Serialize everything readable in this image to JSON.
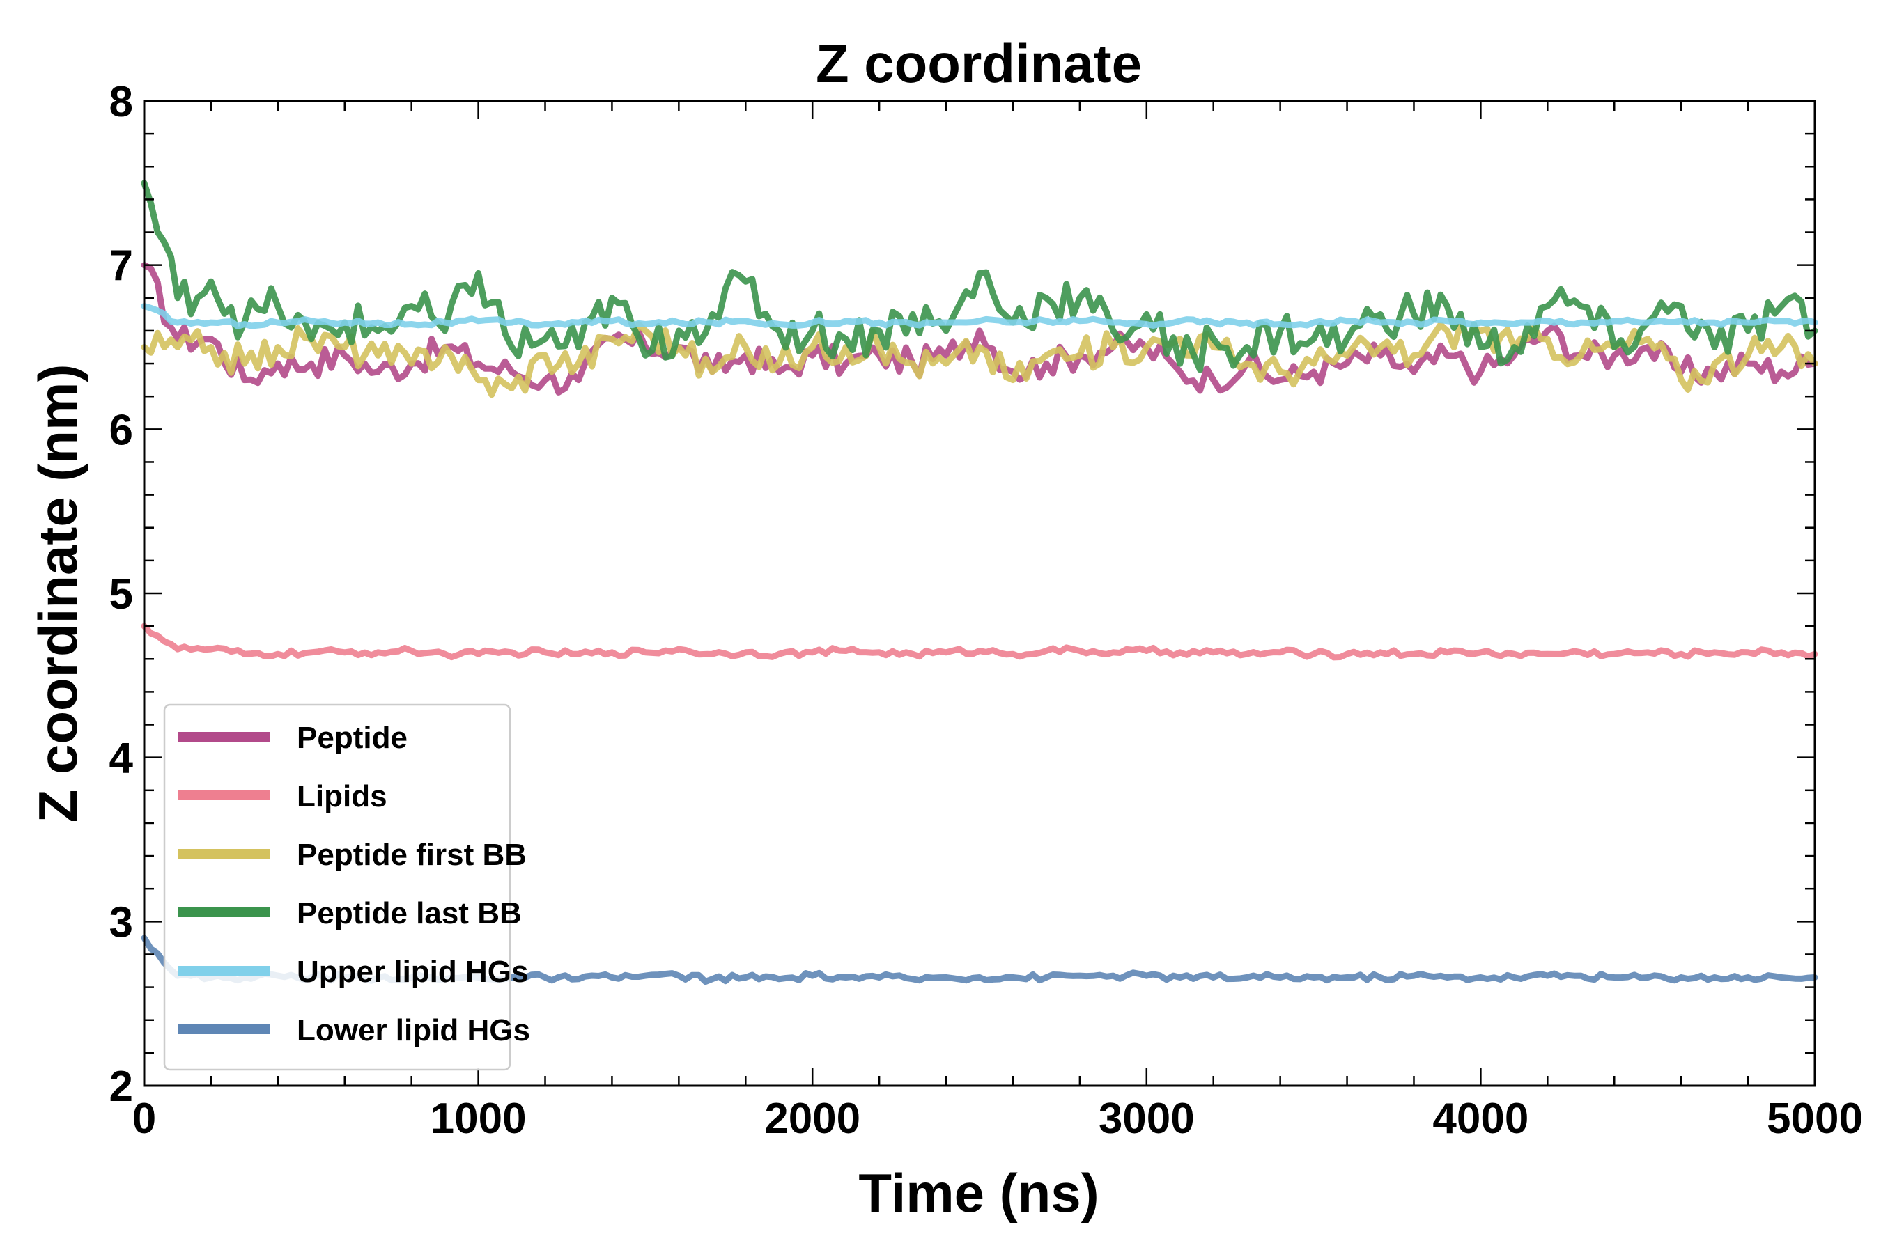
{
  "chart_data": {
    "type": "line",
    "title": "Z coordinate",
    "xlabel": "Time (ns)",
    "ylabel": "Z coordinate (nm)",
    "xlim": [
      0,
      5000
    ],
    "ylim": [
      2,
      8
    ],
    "xticks": [
      0,
      1000,
      2000,
      3000,
      4000,
      5000
    ],
    "yticks": [
      2,
      3,
      4,
      5,
      6,
      7,
      8
    ],
    "xtick_labels": [
      "0",
      "1000",
      "2000",
      "3000",
      "4000",
      "5000"
    ],
    "ytick_labels": [
      "2",
      "3",
      "4",
      "5",
      "6",
      "7",
      "8"
    ],
    "grid": false,
    "legend_position": "lower-left",
    "x": [
      0,
      100,
      200,
      300,
      400,
      500,
      600,
      700,
      800,
      900,
      1000,
      1100,
      1200,
      1300,
      1400,
      1500,
      1600,
      1700,
      1800,
      1900,
      2000,
      2100,
      2200,
      2300,
      2400,
      2500,
      2600,
      2700,
      2800,
      2900,
      3000,
      3100,
      3200,
      3300,
      3400,
      3500,
      3600,
      3700,
      3800,
      3900,
      4000,
      4100,
      4200,
      4300,
      4400,
      4500,
      4600,
      4700,
      4800,
      4900,
      5000
    ],
    "series": [
      {
        "name": "Peptide",
        "color": "#b24a8a",
        "values": [
          7.0,
          6.55,
          6.55,
          6.3,
          6.4,
          6.4,
          6.45,
          6.35,
          6.4,
          6.5,
          6.4,
          6.35,
          6.3,
          6.3,
          6.55,
          6.5,
          6.5,
          6.35,
          6.45,
          6.35,
          6.45,
          6.4,
          6.45,
          6.4,
          6.45,
          6.6,
          6.35,
          6.4,
          6.45,
          6.5,
          6.5,
          6.35,
          6.3,
          6.4,
          6.3,
          6.35,
          6.4,
          6.45,
          6.35,
          6.45,
          6.35,
          6.45,
          6.6,
          6.45,
          6.45,
          6.5,
          6.35,
          6.35,
          6.4,
          6.35,
          6.4
        ]
      },
      {
        "name": "Lipids",
        "color": "#ee7f90",
        "values": [
          4.8,
          4.66,
          4.66,
          4.63,
          4.63,
          4.64,
          4.64,
          4.64,
          4.65,
          4.63,
          4.63,
          4.64,
          4.64,
          4.63,
          4.64,
          4.64,
          4.66,
          4.63,
          4.64,
          4.63,
          4.64,
          4.65,
          4.64,
          4.63,
          4.64,
          4.65,
          4.63,
          4.65,
          4.65,
          4.64,
          4.65,
          4.64,
          4.64,
          4.63,
          4.64,
          4.63,
          4.63,
          4.64,
          4.63,
          4.64,
          4.64,
          4.63,
          4.63,
          4.64,
          4.63,
          4.64,
          4.63,
          4.64,
          4.64,
          4.64,
          4.63
        ]
      },
      {
        "name": "Peptide first BB",
        "color": "#d4c25e",
        "values": [
          6.5,
          6.5,
          6.5,
          6.4,
          6.5,
          6.55,
          6.5,
          6.45,
          6.4,
          6.5,
          6.3,
          6.25,
          6.45,
          6.4,
          6.55,
          6.6,
          6.5,
          6.35,
          6.5,
          6.4,
          6.5,
          6.5,
          6.5,
          6.4,
          6.4,
          6.5,
          6.3,
          6.45,
          6.45,
          6.5,
          6.5,
          6.55,
          6.5,
          6.4,
          6.35,
          6.4,
          6.45,
          6.5,
          6.45,
          6.6,
          6.6,
          6.5,
          6.55,
          6.45,
          6.5,
          6.55,
          6.3,
          6.4,
          6.45,
          6.5,
          6.4
        ]
      },
      {
        "name": "Peptide last BB",
        "color": "#3b944d",
        "values": [
          7.5,
          6.8,
          6.9,
          6.65,
          6.75,
          6.55,
          6.65,
          6.6,
          6.75,
          6.6,
          6.95,
          6.5,
          6.55,
          6.5,
          6.8,
          6.45,
          6.6,
          6.7,
          6.9,
          6.6,
          6.6,
          6.55,
          6.6,
          6.7,
          6.6,
          6.95,
          6.65,
          6.8,
          6.8,
          6.6,
          6.7,
          6.4,
          6.55,
          6.5,
          6.6,
          6.55,
          6.55,
          6.7,
          6.7,
          6.75,
          6.5,
          6.5,
          6.75,
          6.75,
          6.5,
          6.65,
          6.75,
          6.5,
          6.6,
          6.75,
          6.6
        ]
      },
      {
        "name": "Upper lipid HGs",
        "color": "#80d0ea",
        "values": [
          6.75,
          6.65,
          6.65,
          6.64,
          6.65,
          6.66,
          6.65,
          6.65,
          6.64,
          6.65,
          6.66,
          6.65,
          6.64,
          6.65,
          6.66,
          6.64,
          6.65,
          6.65,
          6.66,
          6.64,
          6.65,
          6.66,
          6.65,
          6.64,
          6.65,
          6.66,
          6.65,
          6.66,
          6.66,
          6.65,
          6.64,
          6.66,
          6.65,
          6.65,
          6.64,
          6.65,
          6.66,
          6.65,
          6.65,
          6.66,
          6.65,
          6.64,
          6.66,
          6.65,
          6.66,
          6.65,
          6.66,
          6.65,
          6.65,
          6.66,
          6.65
        ]
      },
      {
        "name": "Lower lipid HGs",
        "color": "#5e86b5",
        "values": [
          2.9,
          2.67,
          2.66,
          2.66,
          2.67,
          2.66,
          2.66,
          2.66,
          2.66,
          2.65,
          2.66,
          2.66,
          2.66,
          2.65,
          2.66,
          2.67,
          2.67,
          2.65,
          2.66,
          2.65,
          2.67,
          2.66,
          2.66,
          2.65,
          2.66,
          2.66,
          2.66,
          2.66,
          2.67,
          2.67,
          2.67,
          2.66,
          2.66,
          2.66,
          2.66,
          2.66,
          2.66,
          2.66,
          2.67,
          2.66,
          2.66,
          2.66,
          2.67,
          2.67,
          2.66,
          2.66,
          2.66,
          2.66,
          2.66,
          2.66,
          2.66
        ]
      }
    ]
  }
}
